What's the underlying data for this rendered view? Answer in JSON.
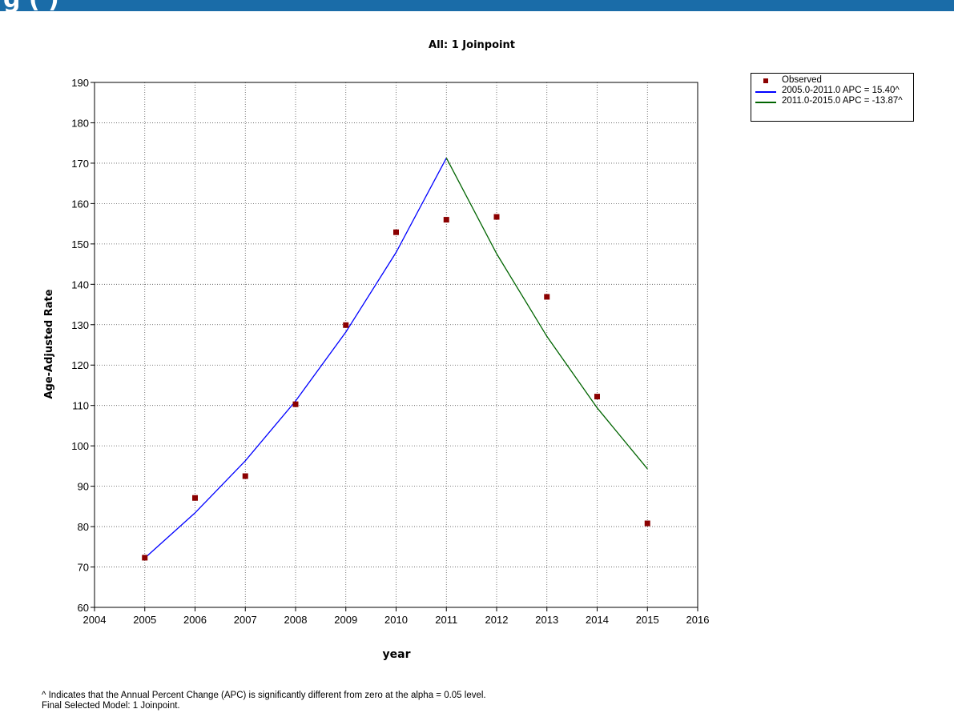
{
  "header": {
    "title_fragment": "g         (                                    )"
  },
  "chart_data": {
    "type": "line",
    "title": "All: 1 Joinpoint",
    "xlabel": "year",
    "ylabel": "Age-Adjusted Rate",
    "xlim": [
      2004,
      2016
    ],
    "ylim": [
      60,
      190
    ],
    "xticks": [
      2004,
      2005,
      2006,
      2007,
      2008,
      2009,
      2010,
      2011,
      2012,
      2013,
      2014,
      2015,
      2016
    ],
    "yticks": [
      60,
      70,
      80,
      90,
      100,
      110,
      120,
      130,
      140,
      150,
      160,
      170,
      180,
      190
    ],
    "grid": true,
    "legend_position": "top-right-outside",
    "series": [
      {
        "name": "Observed",
        "kind": "scatter",
        "color": "#8b0000",
        "x": [
          2005,
          2006,
          2007,
          2008,
          2009,
          2010,
          2011,
          2012,
          2013,
          2014,
          2015
        ],
        "y": [
          72.3,
          87.1,
          92.5,
          110.3,
          129.9,
          152.9,
          156.0,
          156.7,
          136.9,
          112.2,
          80.8
        ]
      },
      {
        "name": "2005.0-2011.0 APC =  15.40^",
        "kind": "line",
        "color": "#0000ff",
        "x": [
          2005,
          2006,
          2007,
          2008,
          2009,
          2010,
          2011
        ],
        "y": [
          72.2,
          83.4,
          96.3,
          111.1,
          128.2,
          147.9,
          171.3
        ]
      },
      {
        "name": "2011.0-2015.0 APC = -13.87^",
        "kind": "line",
        "color": "#006400",
        "x": [
          2011,
          2012,
          2013,
          2014,
          2015
        ],
        "y": [
          171.3,
          147.6,
          127.1,
          109.4,
          94.3
        ]
      }
    ]
  },
  "footnotes": [
    "^ Indicates that the Annual Percent Change (APC) is significantly different from zero at the alpha = 0.05 level.",
    "Final Selected Model: 1 Joinpoint."
  ]
}
